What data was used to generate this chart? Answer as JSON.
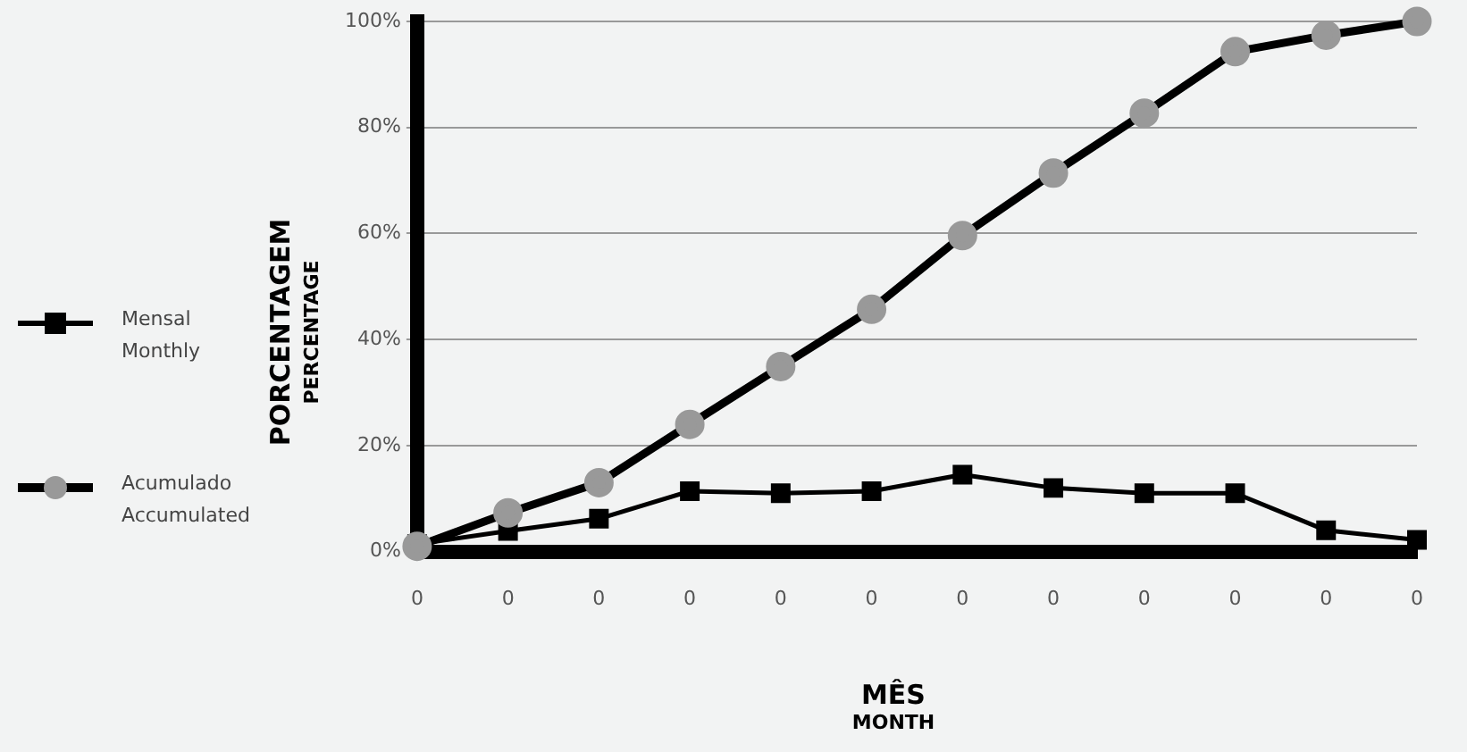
{
  "chart_data": {
    "type": "line",
    "xlabel": "MÊS\nMONTH",
    "ylabel": "PORCENTAGEM\nPERCENTAGE",
    "categories": [
      "0",
      "0",
      "0",
      "0",
      "0",
      "0",
      "0",
      "0",
      "0",
      "0",
      "0",
      "0"
    ],
    "ylim": [
      0,
      100
    ],
    "yticks": [
      {
        "value": 0,
        "label": "0%"
      },
      {
        "value": 20,
        "label": "20%"
      },
      {
        "value": 40,
        "label": "40%"
      },
      {
        "value": 60,
        "label": "60%"
      },
      {
        "value": 80,
        "label": "80%"
      },
      {
        "value": 100,
        "label": "100%"
      }
    ],
    "grid": "y",
    "legend": "left",
    "series": [
      {
        "name": "Mensal\nMonthly",
        "color": "#000000",
        "marker": "square",
        "values": [
          1.4,
          3.9,
          6.2,
          11.4,
          11,
          11.4,
          14.5,
          12,
          11,
          11,
          4,
          2.2
        ]
      },
      {
        "name": "Acumulado\nAccumulated",
        "color": "#999999",
        "marker": "circle",
        "values": [
          1,
          7.3,
          13,
          24,
          34.9,
          45.7,
          59.6,
          71.4,
          82.7,
          94.3,
          97.4,
          100
        ]
      }
    ]
  }
}
